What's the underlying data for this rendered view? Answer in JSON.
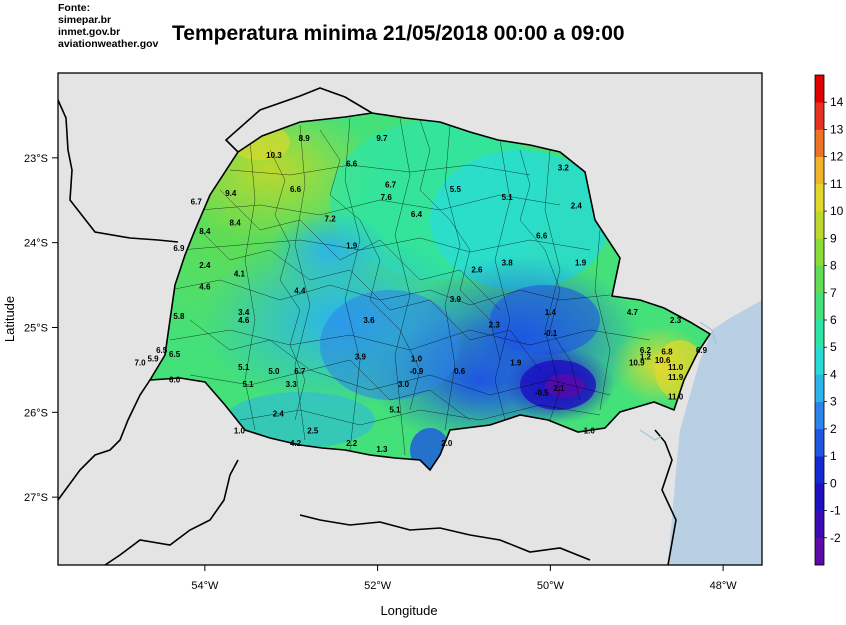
{
  "header": {
    "sources": [
      "Fonte:",
      "simepar.br",
      "inmet.gov.br",
      "aviationweather.gov"
    ],
    "title": "Temperatura minima 21/05/2018 00:00 a 09:00"
  },
  "axes": {
    "xlabel": "Longitude",
    "ylabel": "Latitude",
    "x_ticks": [
      {
        "value": -54,
        "label": "54°W"
      },
      {
        "value": -52,
        "label": "52°W"
      },
      {
        "value": -50,
        "label": "50°W"
      },
      {
        "value": -48,
        "label": "48°W"
      }
    ],
    "y_ticks": [
      {
        "value": -23,
        "label": "23°S"
      },
      {
        "value": -24,
        "label": "24°S"
      },
      {
        "value": -25,
        "label": "25°S"
      },
      {
        "value": -26,
        "label": "26°S"
      },
      {
        "value": -27,
        "label": "27°S"
      }
    ],
    "lon_range": [
      -55.7,
      -47.55
    ],
    "lat_range": [
      -27.8,
      -22.0
    ]
  },
  "colorbar": {
    "labels": [
      "-2",
      "-1",
      "0",
      "1",
      "2",
      "3",
      "4",
      "5",
      "6",
      "7",
      "8",
      "9",
      "10",
      "11",
      "12",
      "13",
      "14"
    ],
    "colors": [
      "#5c0aa8",
      "#3a0ab4",
      "#1c10c0",
      "#1428d6",
      "#1e56e2",
      "#2c84ea",
      "#2cb4ea",
      "#28dcd6",
      "#2ce6a8",
      "#44e07a",
      "#62dc52",
      "#8adc38",
      "#bcd82c",
      "#e2d82c",
      "#f0b42a",
      "#ee7224",
      "#e83020",
      "#e00000"
    ]
  },
  "colors": {
    "land_outside": "#e4e4e4",
    "ocean": "#b8cfe4"
  },
  "stations": [
    {
      "lon": -52.85,
      "lat": -22.8,
      "t": "8.9"
    },
    {
      "lon": -51.95,
      "lat": -22.8,
      "t": "9.7"
    },
    {
      "lon": -53.2,
      "lat": -23.0,
      "t": "10.3"
    },
    {
      "lon": -52.3,
      "lat": -23.1,
      "t": "6.6"
    },
    {
      "lon": -54.1,
      "lat": -23.55,
      "t": "6.7"
    },
    {
      "lon": -53.7,
      "lat": -23.45,
      "t": "9.4"
    },
    {
      "lon": -52.95,
      "lat": -23.4,
      "t": "6.6"
    },
    {
      "lon": -51.85,
      "lat": -23.35,
      "t": "6.7"
    },
    {
      "lon": -51.9,
      "lat": -23.5,
      "t": "7.6"
    },
    {
      "lon": -51.1,
      "lat": -23.4,
      "t": "5.5"
    },
    {
      "lon": -50.5,
      "lat": -23.5,
      "t": "5.1"
    },
    {
      "lon": -49.85,
      "lat": -23.15,
      "t": "3.2"
    },
    {
      "lon": -51.55,
      "lat": -23.7,
      "t": "6.4"
    },
    {
      "lon": -49.7,
      "lat": -23.6,
      "t": "2.4"
    },
    {
      "lon": -53.65,
      "lat": -23.8,
      "t": "8.4"
    },
    {
      "lon": -52.55,
      "lat": -23.75,
      "t": "7.2"
    },
    {
      "lon": -50.1,
      "lat": -23.95,
      "t": "6.6"
    },
    {
      "lon": -54.0,
      "lat": -23.9,
      "t": "8.4"
    },
    {
      "lon": -54.3,
      "lat": -24.1,
      "t": "6.9"
    },
    {
      "lon": -52.3,
      "lat": -24.07,
      "t": "1.9"
    },
    {
      "lon": -54.0,
      "lat": -24.3,
      "t": "2.4"
    },
    {
      "lon": -53.6,
      "lat": -24.4,
      "t": "4.1"
    },
    {
      "lon": -50.5,
      "lat": -24.27,
      "t": "3.8"
    },
    {
      "lon": -49.65,
      "lat": -24.27,
      "t": "1.9"
    },
    {
      "lon": -50.85,
      "lat": -24.35,
      "t": "2.6"
    },
    {
      "lon": -54.0,
      "lat": -24.55,
      "t": "4.6"
    },
    {
      "lon": -52.9,
      "lat": -24.6,
      "t": "4.4"
    },
    {
      "lon": -51.1,
      "lat": -24.7,
      "t": "3.9"
    },
    {
      "lon": -53.55,
      "lat": -24.85,
      "t": "3.4"
    },
    {
      "lon": -54.3,
      "lat": -24.9,
      "t": "5.8"
    },
    {
      "lon": -53.55,
      "lat": -24.95,
      "t": "4.6"
    },
    {
      "lon": -52.1,
      "lat": -24.95,
      "t": "3.6"
    },
    {
      "lon": -50.0,
      "lat": -24.85,
      "t": "1.4"
    },
    {
      "lon": -49.05,
      "lat": -24.85,
      "t": "4.7"
    },
    {
      "lon": -50.65,
      "lat": -25.0,
      "t": "2.3"
    },
    {
      "lon": -50.0,
      "lat": -25.1,
      "t": "-0.1"
    },
    {
      "lon": -48.55,
      "lat": -24.95,
      "t": "2.3"
    },
    {
      "lon": -54.5,
      "lat": -25.3,
      "t": "6.5"
    },
    {
      "lon": -48.9,
      "lat": -25.3,
      "t": "6.2"
    },
    {
      "lon": -48.65,
      "lat": -25.32,
      "t": "6.8"
    },
    {
      "lon": -48.25,
      "lat": -25.3,
      "t": "6.9"
    },
    {
      "lon": -54.6,
      "lat": -25.4,
      "t": "5.9"
    },
    {
      "lon": -54.35,
      "lat": -25.35,
      "t": "6.5"
    },
    {
      "lon": -52.2,
      "lat": -25.38,
      "t": "3.9"
    },
    {
      "lon": -51.55,
      "lat": -25.4,
      "t": "1.0"
    },
    {
      "lon": -54.75,
      "lat": -25.45,
      "t": "7.0"
    },
    {
      "lon": -53.55,
      "lat": -25.5,
      "t": "5.1"
    },
    {
      "lon": -53.2,
      "lat": -25.55,
      "t": "5.0"
    },
    {
      "lon": -52.9,
      "lat": -25.55,
      "t": "6.7"
    },
    {
      "lon": -51.55,
      "lat": -25.55,
      "t": "-0.9"
    },
    {
      "lon": -51.05,
      "lat": -25.55,
      "t": "0.6"
    },
    {
      "lon": -50.4,
      "lat": -25.45,
      "t": "1.9"
    },
    {
      "lon": -49.0,
      "lat": -25.45,
      "t": "10.9"
    },
    {
      "lon": -48.7,
      "lat": -25.42,
      "t": "10.6"
    },
    {
      "lon": -48.9,
      "lat": -25.38,
      "t": "1.2"
    },
    {
      "lon": -48.55,
      "lat": -25.5,
      "t": "11.0"
    },
    {
      "lon": -48.55,
      "lat": -25.62,
      "t": "11.9"
    },
    {
      "lon": -54.35,
      "lat": -25.65,
      "t": "6.0"
    },
    {
      "lon": -53.5,
      "lat": -25.7,
      "t": "5.1"
    },
    {
      "lon": -53.0,
      "lat": -25.7,
      "t": "3.3"
    },
    {
      "lon": -51.7,
      "lat": -25.7,
      "t": "3.0"
    },
    {
      "lon": -50.1,
      "lat": -25.8,
      "t": "-0.5"
    },
    {
      "lon": -49.9,
      "lat": -25.75,
      "t": "2.1"
    },
    {
      "lon": -48.55,
      "lat": -25.85,
      "t": "11.0"
    },
    {
      "lon": -51.8,
      "lat": -26.0,
      "t": "5.1"
    },
    {
      "lon": -53.15,
      "lat": -26.05,
      "t": "2.4"
    },
    {
      "lon": -53.6,
      "lat": -26.25,
      "t": "1.0"
    },
    {
      "lon": -52.75,
      "lat": -26.25,
      "t": "2.5"
    },
    {
      "lon": -49.55,
      "lat": -26.25,
      "t": "1.0"
    },
    {
      "lon": -52.95,
      "lat": -26.4,
      "t": "4.2"
    },
    {
      "lon": -52.3,
      "lat": -26.4,
      "t": "2.2"
    },
    {
      "lon": -51.2,
      "lat": -26.4,
      "t": "2.0"
    },
    {
      "lon": -51.95,
      "lat": -26.47,
      "t": "1.3"
    }
  ]
}
